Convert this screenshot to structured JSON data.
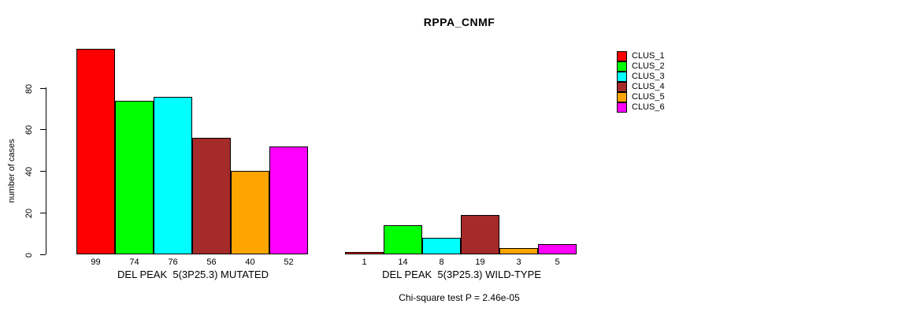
{
  "chart_data": {
    "type": "bar",
    "title": "RPPA_CNMF",
    "ylabel": "number of cases",
    "ylim": [
      0,
      103
    ],
    "yticks": [
      0,
      20,
      40,
      60,
      80
    ],
    "grid": false,
    "legend_position": "right",
    "legend": [
      {
        "label": "CLUS_1",
        "color": "#FF0000"
      },
      {
        "label": "CLUS_2",
        "color": "#00FF00"
      },
      {
        "label": "CLUS_3",
        "color": "#00FFFF"
      },
      {
        "label": "CLUS_4",
        "color": "#A52A2A"
      },
      {
        "label": "CLUS_5",
        "color": "#FFA500"
      },
      {
        "label": "CLUS_6",
        "color": "#FF00FF"
      }
    ],
    "groups": [
      {
        "xlabel": "DEL PEAK  5(3P25.3) MUTATED",
        "values": [
          99,
          74,
          76,
          56,
          40,
          52
        ]
      },
      {
        "xlabel": "DEL PEAK  5(3P25.3) WILD-TYPE",
        "values": [
          1,
          14,
          8,
          19,
          3,
          5
        ]
      }
    ],
    "footnote": "Chi-square test P = 2.46e-05"
  }
}
